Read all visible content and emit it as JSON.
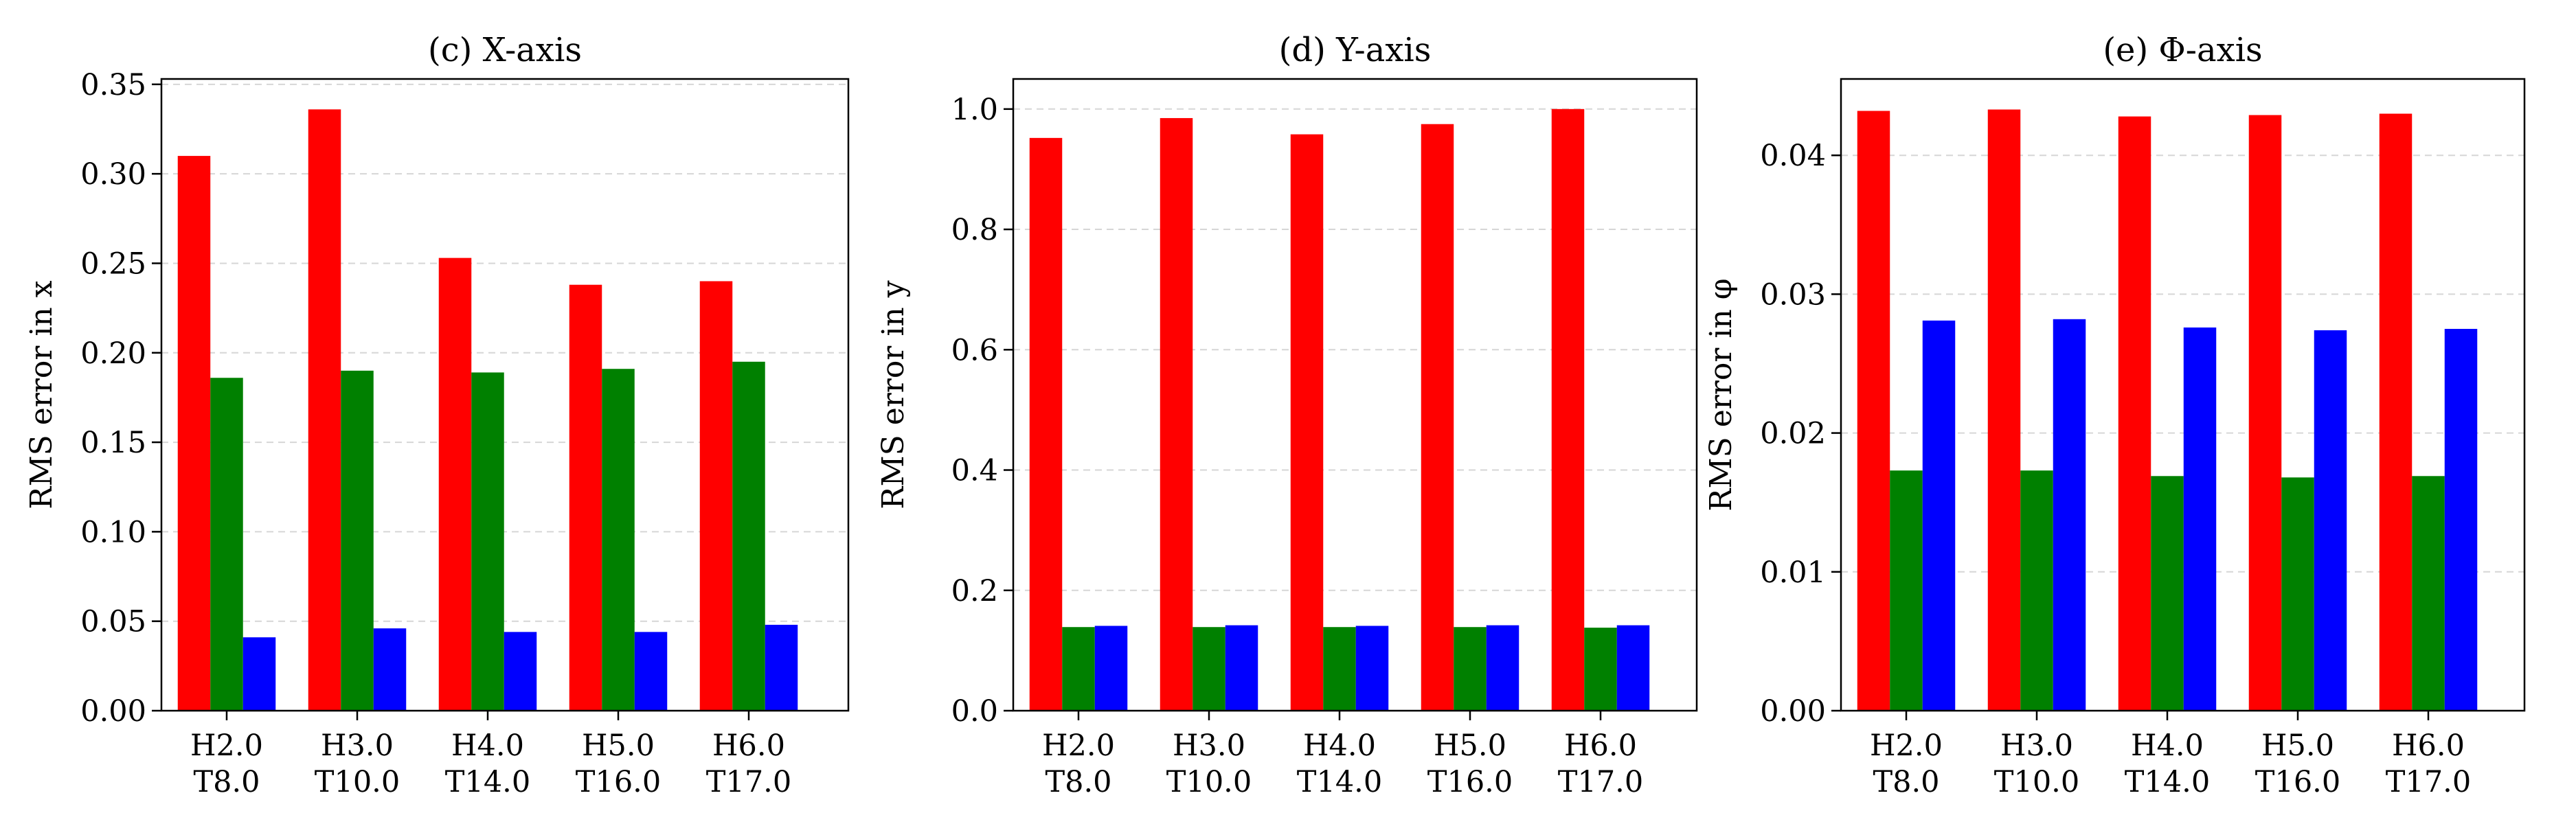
{
  "chart_data": [
    {
      "type": "bar",
      "title": "(c) X-axis",
      "xlabel": "",
      "ylabel": "RMS error in x",
      "ylim": [
        0,
        0.353
      ],
      "yticks": [
        "0.00",
        "0.05",
        "0.10",
        "0.15",
        "0.20",
        "0.25",
        "0.30",
        "0.35"
      ],
      "grid": "horizontal dashed",
      "legend": "none",
      "categories": [
        [
          "H2.0",
          "T8.0"
        ],
        [
          "H3.0",
          "T10.0"
        ],
        [
          "H4.0",
          "T14.0"
        ],
        [
          "H5.0",
          "T16.0"
        ],
        [
          "H6.0",
          "T17.0"
        ]
      ],
      "series": [
        {
          "color": "#ff0000",
          "values": [
            0.31,
            0.336,
            0.253,
            0.238,
            0.24
          ]
        },
        {
          "color": "#008000",
          "values": [
            0.186,
            0.19,
            0.189,
            0.191,
            0.195
          ]
        },
        {
          "color": "#0000ff",
          "values": [
            0.041,
            0.046,
            0.044,
            0.044,
            0.048
          ]
        }
      ]
    },
    {
      "type": "bar",
      "title": "(d) Y-axis",
      "xlabel": "",
      "ylabel": "RMS error in y",
      "ylim": [
        0,
        1.05
      ],
      "yticks": [
        "0.0",
        "0.2",
        "0.4",
        "0.6",
        "0.8",
        "1.0"
      ],
      "grid": "horizontal dashed",
      "legend": "none",
      "categories": [
        [
          "H2.0",
          "T8.0"
        ],
        [
          "H3.0",
          "T10.0"
        ],
        [
          "H4.0",
          "T14.0"
        ],
        [
          "H5.0",
          "T16.0"
        ],
        [
          "H6.0",
          "T17.0"
        ]
      ],
      "series": [
        {
          "color": "#ff0000",
          "values": [
            0.952,
            0.985,
            0.958,
            0.975,
            1.0
          ]
        },
        {
          "color": "#008000",
          "values": [
            0.139,
            0.139,
            0.139,
            0.139,
            0.138
          ]
        },
        {
          "color": "#0000ff",
          "values": [
            0.141,
            0.142,
            0.141,
            0.142,
            0.142
          ]
        }
      ]
    },
    {
      "type": "bar",
      "title": "(e) Φ-axis",
      "xlabel": "",
      "ylabel": "RMS error in φ",
      "ylim": [
        0,
        0.0455
      ],
      "yticks": [
        "0.00",
        "0.01",
        "0.02",
        "0.03",
        "0.04"
      ],
      "grid": "horizontal dashed",
      "legend": "none",
      "categories": [
        [
          "H2.0",
          "T8.0"
        ],
        [
          "H3.0",
          "T10.0"
        ],
        [
          "H4.0",
          "T14.0"
        ],
        [
          "H5.0",
          "T16.0"
        ],
        [
          "H6.0",
          "T17.0"
        ]
      ],
      "series": [
        {
          "color": "#ff0000",
          "values": [
            0.0432,
            0.0433,
            0.0428,
            0.0429,
            0.043
          ]
        },
        {
          "color": "#008000",
          "values": [
            0.0173,
            0.0173,
            0.0169,
            0.0168,
            0.0169
          ]
        },
        {
          "color": "#0000ff",
          "values": [
            0.0281,
            0.0282,
            0.0276,
            0.0274,
            0.0275
          ]
        }
      ]
    }
  ]
}
